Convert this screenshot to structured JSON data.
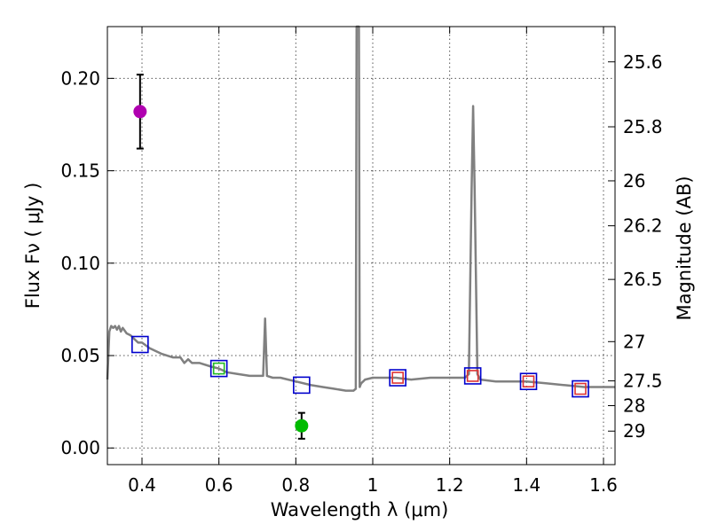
{
  "chart_data": {
    "type": "scatter",
    "xlabel": "Wavelength  λ (μm)",
    "ylabel": "Flux  Fν  ( μJy )",
    "y2label": "Magnitude (AB)",
    "xlim": [
      0.31,
      1.63
    ],
    "ylim": [
      -0.009,
      0.228
    ],
    "grid": true,
    "x_ticks": [
      {
        "value": 0.4,
        "label": "0.4"
      },
      {
        "value": 0.6,
        "label": "0.6"
      },
      {
        "value": 0.8,
        "label": "0.8"
      },
      {
        "value": 1.0,
        "label": "1"
      },
      {
        "value": 1.2,
        "label": "1.2"
      },
      {
        "value": 1.4,
        "label": "1.4"
      },
      {
        "value": 1.6,
        "label": "1.6"
      }
    ],
    "y_ticks": [
      {
        "value": 0.0,
        "label": "0.00"
      },
      {
        "value": 0.05,
        "label": "0.05"
      },
      {
        "value": 0.1,
        "label": "0.10"
      },
      {
        "value": 0.15,
        "label": "0.15"
      },
      {
        "value": 0.2,
        "label": "0.20"
      }
    ],
    "y2_ticks": [
      {
        "mag": 25.6,
        "label": "25.6"
      },
      {
        "mag": 25.8,
        "label": "25.8"
      },
      {
        "mag": 26.0,
        "label": "26"
      },
      {
        "mag": 26.2,
        "label": "26.2"
      },
      {
        "mag": 26.5,
        "label": "26.5"
      },
      {
        "mag": 27.0,
        "label": "27"
      },
      {
        "mag": 27.5,
        "label": "27.5"
      },
      {
        "mag": 28.0,
        "label": "28"
      },
      {
        "mag": 29.0,
        "label": "29"
      }
    ],
    "spectrum": {
      "name": "model spectrum",
      "color": "#808080",
      "x": [
        0.31,
        0.315,
        0.32,
        0.325,
        0.33,
        0.335,
        0.34,
        0.345,
        0.35,
        0.36,
        0.37,
        0.38,
        0.39,
        0.4,
        0.42,
        0.45,
        0.48,
        0.5,
        0.51,
        0.52,
        0.53,
        0.55,
        0.58,
        0.6,
        0.62,
        0.65,
        0.68,
        0.7,
        0.715,
        0.72,
        0.725,
        0.74,
        0.76,
        0.78,
        0.8,
        0.84,
        0.87,
        0.9,
        0.93,
        0.95,
        0.956,
        0.958,
        0.962,
        0.964,
        0.966,
        0.968,
        0.97,
        0.975,
        0.98,
        1.0,
        1.03,
        1.06,
        1.1,
        1.15,
        1.2,
        1.24,
        1.25,
        1.257,
        1.261,
        1.265,
        1.272,
        1.28,
        1.32,
        1.36,
        1.4,
        1.45,
        1.5,
        1.55,
        1.6,
        1.63
      ],
      "y": [
        0.037,
        0.063,
        0.066,
        0.065,
        0.066,
        0.064,
        0.066,
        0.063,
        0.065,
        0.062,
        0.061,
        0.059,
        0.057,
        0.057,
        0.054,
        0.051,
        0.049,
        0.049,
        0.046,
        0.048,
        0.046,
        0.046,
        0.044,
        0.043,
        0.041,
        0.04,
        0.039,
        0.039,
        0.039,
        0.07,
        0.039,
        0.038,
        0.038,
        0.037,
        0.036,
        0.034,
        0.033,
        0.032,
        0.031,
        0.031,
        0.032,
        0.228,
        0.228,
        0.228,
        0.033,
        0.034,
        0.035,
        0.036,
        0.037,
        0.038,
        0.038,
        0.038,
        0.037,
        0.038,
        0.038,
        0.038,
        0.04,
        0.14,
        0.185,
        0.14,
        0.04,
        0.037,
        0.036,
        0.036,
        0.036,
        0.035,
        0.034,
        0.033,
        0.033,
        0.033
      ]
    },
    "series": [
      {
        "name": "model photometry (blue boxes)",
        "color": "#0000cc",
        "marker": "square-open",
        "x": [
          0.395,
          0.6,
          0.815,
          1.065,
          1.26,
          1.405,
          1.54
        ],
        "y": [
          0.056,
          0.043,
          0.034,
          0.038,
          0.039,
          0.036,
          0.032
        ]
      },
      {
        "name": "observed photometry (red boxes)",
        "color": "#dd3333",
        "marker": "square-open-small",
        "x": [
          1.065,
          1.26,
          1.405,
          1.54
        ],
        "y": [
          0.038,
          0.039,
          0.036,
          0.032
        ]
      },
      {
        "name": "green photometry box",
        "color": "#22bb22",
        "marker": "square-open-small",
        "x": [
          0.6
        ],
        "y": [
          0.043
        ]
      },
      {
        "name": "detection (magenta)",
        "color": "#b000b0",
        "marker": "circle",
        "x": [
          0.395
        ],
        "y": [
          0.182
        ],
        "yerr": [
          0.02
        ]
      },
      {
        "name": "detection (green)",
        "color": "#00bb00",
        "marker": "circle",
        "x": [
          0.815
        ],
        "y": [
          0.012
        ],
        "yerr": [
          0.007
        ]
      }
    ]
  }
}
